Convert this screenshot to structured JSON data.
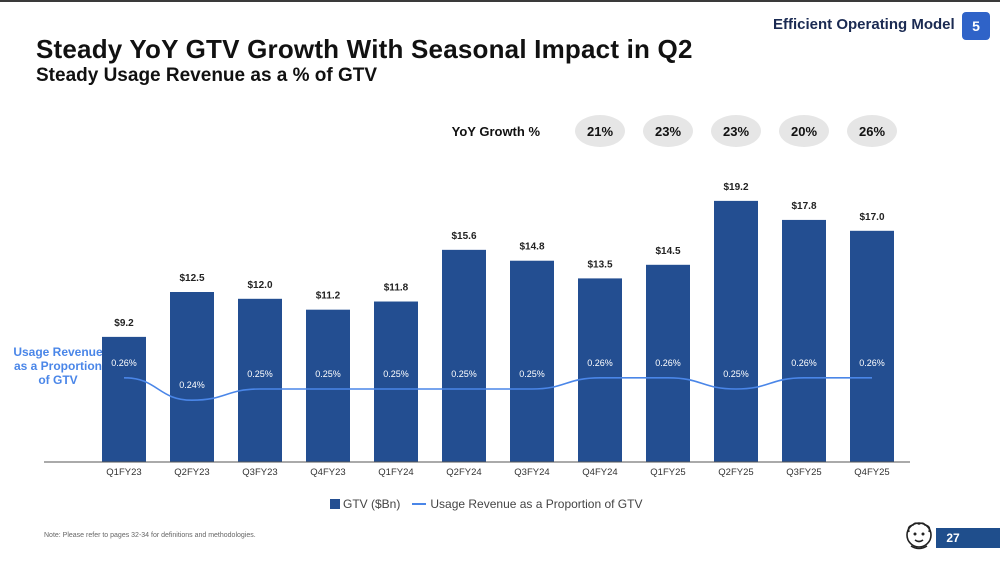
{
  "header": {
    "title": "Steady YoY GTV Growth With Seasonal Impact in Q2",
    "subtitle": "Steady Usage Revenue as a % of GTV",
    "section_tag": "Efficient Operating Model",
    "section_number": "5"
  },
  "footer": {
    "note": "Note: Please refer to pages 32-34 for definitions and methodologies.",
    "page_number": "27",
    "mascot_icon": "lion-mascot-icon"
  },
  "colors": {
    "bar": "#234e91",
    "line": "#4a86e8",
    "growth_pill": "#e6e6e6",
    "accent": "#2f63c8"
  },
  "side_label": "Usage Revenue as a Proportion of GTV",
  "chart_data": {
    "type": "bar",
    "categories": [
      "Q1FY23",
      "Q2FY23",
      "Q3FY23",
      "Q4FY23",
      "Q1FY24",
      "Q2FY24",
      "Q3FY24",
      "Q4FY24",
      "Q1FY25",
      "Q2FY25",
      "Q3FY25",
      "Q4FY25"
    ],
    "series": [
      {
        "name": "GTV ($Bn)",
        "type": "bar",
        "values": [
          9.2,
          12.5,
          12.0,
          11.2,
          11.8,
          15.6,
          14.8,
          13.5,
          14.5,
          19.2,
          17.8,
          17.0
        ],
        "labels": [
          "$9.2",
          "$12.5",
          "$12.0",
          "$11.2",
          "$11.8",
          "$15.6",
          "$14.8",
          "$13.5",
          "$14.5",
          "$19.2",
          "$17.8",
          "$17.0"
        ]
      },
      {
        "name": "Usage Revenue as a Proportion of GTV",
        "type": "line",
        "values": [
          0.26,
          0.24,
          0.25,
          0.25,
          0.25,
          0.25,
          0.25,
          0.26,
          0.26,
          0.25,
          0.26,
          0.26
        ],
        "labels": [
          "0.26%",
          "0.24%",
          "0.25%",
          "0.25%",
          "0.25%",
          "0.25%",
          "0.25%",
          "0.26%",
          "0.26%",
          "0.25%",
          "0.26%",
          "0.26%"
        ]
      }
    ],
    "yoy_growth": {
      "label": "YoY Growth %",
      "categories": [
        "Q4FY24",
        "Q1FY25",
        "Q2FY25",
        "Q3FY25",
        "Q4FY25"
      ],
      "values": [
        "21%",
        "23%",
        "23%",
        "20%",
        "26%"
      ]
    },
    "ylim": [
      0,
      20
    ],
    "line_ylim": [
      0.2,
      0.3
    ],
    "grid": false,
    "legend_position": "bottom-center"
  }
}
